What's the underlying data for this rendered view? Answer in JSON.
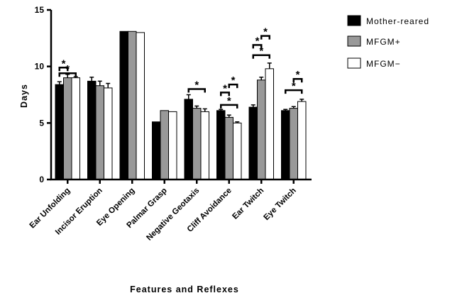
{
  "chart_data": {
    "type": "bar",
    "title": "",
    "xlabel": "Features and Reflexes",
    "ylabel": "Days",
    "ylim": [
      0,
      15
    ],
    "yticks": [
      0,
      5,
      10,
      15
    ],
    "grid": false,
    "legend_position": "top-right",
    "categories": [
      "Ear Unfolding",
      "Incisor Eruption",
      "Eye Opening",
      "Palmar Grasp",
      "Negative Geotaxis",
      "Cliff Avoidance",
      "Ear Twitch",
      "Eye Twitch"
    ],
    "series": [
      {
        "name": "Mother-reared",
        "color": "#000000",
        "values": [
          8.4,
          8.7,
          13.1,
          5.1,
          7.1,
          6.1,
          6.4,
          6.1
        ],
        "errors": [
          0.25,
          0.35,
          0.0,
          0.0,
          0.4,
          0.1,
          0.2,
          0.1
        ]
      },
      {
        "name": "MFGM+",
        "color": "#999999",
        "values": [
          9.0,
          8.3,
          13.1,
          6.1,
          6.3,
          5.5,
          8.8,
          6.3
        ],
        "errors": [
          0.3,
          0.4,
          0.0,
          0.0,
          0.2,
          0.2,
          0.25,
          0.15
        ]
      },
      {
        "name": "MFGM−",
        "color": "#ffffff",
        "values": [
          9.0,
          8.1,
          13.0,
          6.0,
          6.0,
          5.0,
          9.8,
          6.9
        ],
        "errors": [
          0.1,
          0.4,
          0.0,
          0.0,
          0.25,
          0.1,
          0.5,
          0.2
        ]
      }
    ],
    "significance": [
      {
        "category": 0,
        "from": 0,
        "to": 1,
        "level": 9.9,
        "label": "*"
      },
      {
        "category": 0,
        "from": 0,
        "to": 2,
        "level": 9.4,
        "label": "*"
      },
      {
        "category": 4,
        "from": 0,
        "to": 2,
        "level": 8.0,
        "label": "*"
      },
      {
        "category": 5,
        "from": 0,
        "to": 1,
        "level": 7.7,
        "label": "*"
      },
      {
        "category": 5,
        "from": 1,
        "to": 2,
        "level": 8.4,
        "label": "*"
      },
      {
        "category": 5,
        "from": 0,
        "to": 2,
        "level": 6.6,
        "label": "*"
      },
      {
        "category": 6,
        "from": 0,
        "to": 1,
        "level": 11.9,
        "label": "*"
      },
      {
        "category": 6,
        "from": 1,
        "to": 2,
        "level": 12.7,
        "label": "*"
      },
      {
        "category": 6,
        "from": 0,
        "to": 2,
        "level": 11.0,
        "label": "*"
      },
      {
        "category": 7,
        "from": 1,
        "to": 2,
        "level": 8.9,
        "label": "*"
      },
      {
        "category": 7,
        "from": 0,
        "to": 2,
        "level": 7.9,
        "label": "*"
      }
    ]
  }
}
